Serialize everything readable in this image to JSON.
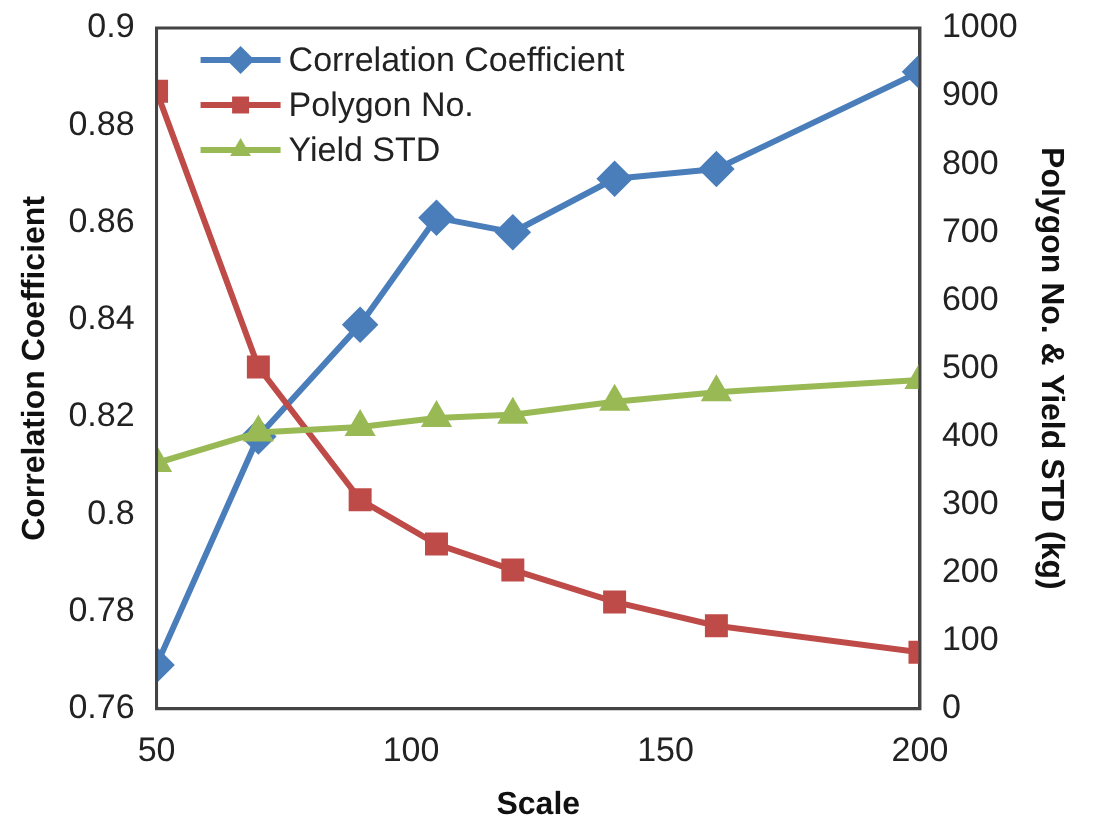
{
  "chart_data": {
    "type": "line",
    "xlabel": "Scale",
    "ylabel": "Correlation Coefficient",
    "y2label": "Polygon No. & Yield STD (kg)",
    "x": [
      50,
      70,
      90,
      105,
      120,
      140,
      160,
      200
    ],
    "series": [
      {
        "name": "Correlation Coefficient",
        "color": "#4a7ebb",
        "marker": "diamond",
        "values": [
          0.769,
          0.816,
          0.839,
          0.861,
          0.858,
          0.869,
          0.871,
          0.891
        ]
      },
      {
        "name": "Polygon No.",
        "color": "#be4b48",
        "marker": "square",
        "axis": "y2",
        "values": [
          907,
          502,
          307,
          242,
          204,
          157,
          122,
          83
        ]
      },
      {
        "name": "Yield STD",
        "color": "#98b954",
        "marker": "triangle",
        "axis": "y2",
        "values": [
          361,
          406,
          414,
          427,
          432,
          451,
          465,
          483
        ]
      }
    ],
    "xlim": [
      50,
      200
    ],
    "xticks": [
      50,
      100,
      150,
      200
    ],
    "ylim": [
      0.76,
      0.9
    ],
    "yticks": [
      0.76,
      0.78,
      0.8,
      0.82,
      0.84,
      0.86,
      0.88,
      0.9
    ],
    "y2lim": [
      0,
      1000
    ],
    "y2ticks": [
      0,
      100,
      200,
      300,
      400,
      500,
      600,
      700,
      800,
      900,
      1000
    ],
    "grid": false,
    "legend": "top left",
    "line_style": "solid"
  }
}
